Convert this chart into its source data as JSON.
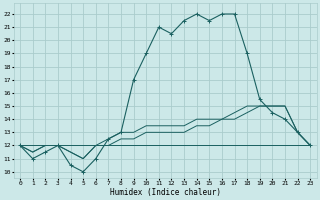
{
  "xlabel": "Humidex (Indice chaleur)",
  "bg_color": "#cce8e8",
  "grid_color": "#aacccc",
  "line_color": "#1a6060",
  "x_ticks": [
    0,
    1,
    2,
    3,
    4,
    5,
    6,
    7,
    8,
    9,
    10,
    11,
    12,
    13,
    14,
    15,
    16,
    17,
    18,
    19,
    20,
    21,
    22,
    23
  ],
  "y_ticks": [
    10,
    11,
    12,
    13,
    14,
    15,
    16,
    17,
    18,
    19,
    20,
    21,
    22
  ],
  "xlim": [
    -0.5,
    23.5
  ],
  "ylim": [
    9.5,
    22.8
  ],
  "series1": [
    12,
    11,
    11.5,
    12,
    10.5,
    10,
    11,
    12.5,
    13,
    17,
    19,
    21,
    20.5,
    21.5,
    22,
    21.5,
    22,
    22,
    19,
    15.5,
    14.5,
    14,
    13,
    12
  ],
  "series2": [
    12,
    11.5,
    12,
    12,
    11.5,
    11,
    12,
    12.5,
    13,
    13,
    13.5,
    13.5,
    13.5,
    13.5,
    14,
    14,
    14,
    14.5,
    15,
    15,
    15,
    15,
    13,
    12
  ],
  "series3": [
    12,
    11.5,
    12,
    12,
    11.5,
    11,
    12,
    12,
    12.5,
    12.5,
    13,
    13,
    13,
    13,
    13.5,
    13.5,
    14,
    14,
    14.5,
    15,
    15,
    15,
    13,
    12
  ],
  "series4": [
    12,
    12,
    12,
    12,
    12,
    12,
    12,
    12,
    12,
    12,
    12,
    12,
    12,
    12,
    12,
    12,
    12,
    12,
    12,
    12,
    12,
    12,
    12,
    12
  ]
}
